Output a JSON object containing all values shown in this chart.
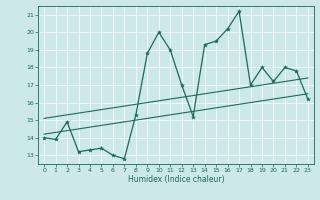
{
  "title": "",
  "xlabel": "Humidex (Indice chaleur)",
  "xlim": [
    -0.5,
    23.5
  ],
  "ylim": [
    12.5,
    21.5
  ],
  "yticks": [
    13,
    14,
    15,
    16,
    17,
    18,
    19,
    20,
    21
  ],
  "xticks": [
    0,
    1,
    2,
    3,
    4,
    5,
    6,
    7,
    8,
    9,
    10,
    11,
    12,
    13,
    14,
    15,
    16,
    17,
    18,
    19,
    20,
    21,
    22,
    23
  ],
  "bg_color": "#cce8e8",
  "line_color": "#1a6b5a",
  "grid_color": "#ffffff",
  "line_data": [
    {
      "x": [
        0,
        1,
        2,
        3,
        4,
        5,
        6,
        7,
        8,
        9,
        10,
        11,
        12,
        13,
        14,
        15,
        16,
        17,
        18,
        19,
        20,
        21,
        22,
        23
      ],
      "y": [
        14.0,
        13.9,
        14.9,
        13.2,
        13.3,
        13.4,
        13.0,
        12.8,
        15.3,
        18.8,
        20.0,
        19.0,
        17.0,
        15.2,
        19.3,
        19.5,
        20.2,
        21.2,
        17.0,
        18.0,
        17.2,
        18.0,
        17.8,
        16.2
      ],
      "marker": true
    },
    {
      "x": [
        0,
        23
      ],
      "y": [
        14.2,
        16.5
      ],
      "marker": false
    },
    {
      "x": [
        0,
        23
      ],
      "y": [
        15.1,
        17.4
      ],
      "marker": false
    }
  ]
}
